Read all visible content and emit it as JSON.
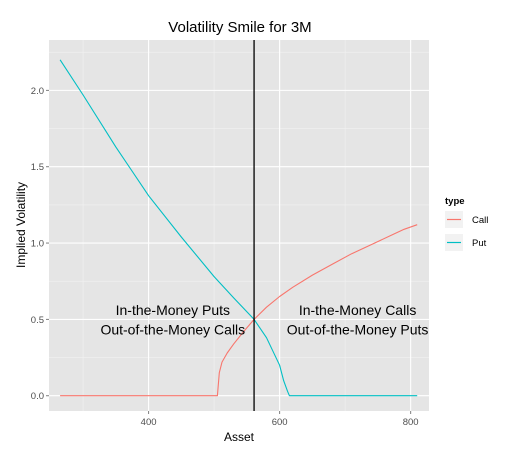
{
  "chart_data": {
    "type": "line",
    "title": "Volatility Smile for 3M",
    "xlabel": "Asset",
    "ylabel": "Implied Volatility",
    "xlim": [
      248,
      828
    ],
    "ylim": [
      -0.1,
      2.33
    ],
    "x_ticks": [
      400,
      600,
      800
    ],
    "x_tick_labels": [
      "400",
      "600",
      "800"
    ],
    "y_ticks": [
      0.0,
      0.5,
      1.0,
      1.5,
      2.0
    ],
    "y_tick_labels": [
      "0.0",
      "0.5",
      "1.0",
      "1.5",
      "2.0"
    ],
    "grid": true,
    "vline": 561,
    "legend": {
      "title": "type",
      "position": "right",
      "entries": [
        {
          "label": "Call",
          "color": "#f8766d"
        },
        {
          "label": "Put",
          "color": "#00bfc4"
        }
      ]
    },
    "annotations": [
      {
        "text": "In-the-Money Puts",
        "x": 437,
        "y": 0.53
      },
      {
        "text": "Out-of-the-Money Calls",
        "x": 437,
        "y": 0.4
      },
      {
        "text": "In-the-Money Calls",
        "x": 719,
        "y": 0.53
      },
      {
        "text": "Out-of-the-Money Puts",
        "x": 719,
        "y": 0.4
      }
    ],
    "series": [
      {
        "name": "Call",
        "color": "#f8766d",
        "x": [
          265,
          350,
          450,
          505,
          508,
          512,
          520,
          530,
          545,
          561,
          580,
          600,
          620,
          650,
          680,
          710,
          740,
          770,
          790,
          810
        ],
        "y": [
          0.0,
          0.0,
          0.0,
          0.0,
          0.15,
          0.22,
          0.28,
          0.34,
          0.42,
          0.5,
          0.58,
          0.65,
          0.71,
          0.79,
          0.86,
          0.93,
          0.99,
          1.05,
          1.09,
          1.12
        ]
      },
      {
        "name": "Put",
        "color": "#00bfc4",
        "x": [
          265,
          300,
          350,
          400,
          450,
          500,
          530,
          561,
          580,
          600,
          606,
          612,
          615,
          650,
          700,
          750,
          810
        ],
        "y": [
          2.2,
          1.97,
          1.63,
          1.31,
          1.04,
          0.78,
          0.64,
          0.5,
          0.38,
          0.2,
          0.1,
          0.03,
          0.0,
          0.0,
          0.0,
          0.0,
          0.0
        ]
      }
    ]
  }
}
